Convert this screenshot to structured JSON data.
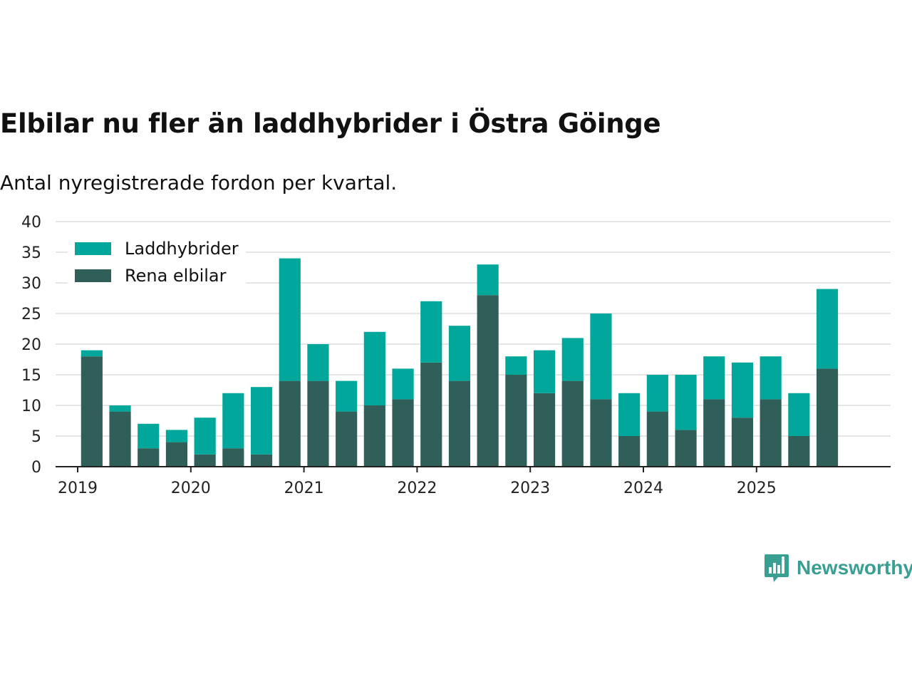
{
  "title": "Elbilar nu fler än laddhybrider i Östra Göinge",
  "subtitle": "Antal nyregistrerade fordon per kvartal.",
  "brand": {
    "name": "Newsworthy",
    "color": "#3a9f93",
    "icon": "newsworthy-logo-icon"
  },
  "colors": {
    "laddhybrider": "#00a79a",
    "rena_elbilar": "#2f5f58",
    "grid": "#dddddd",
    "axis": "#222222"
  },
  "chart_data": {
    "type": "bar",
    "stacked": true,
    "title": "Elbilar nu fler än laddhybrider i Östra Göinge",
    "subtitle": "Antal nyregistrerade fordon per kvartal.",
    "xlabel": "",
    "ylabel": "",
    "ylim": [
      0,
      40
    ],
    "yticks": [
      0,
      5,
      10,
      15,
      20,
      25,
      30,
      35,
      40
    ],
    "xlim": [
      2019,
      2026.2
    ],
    "xticks": [
      2019,
      2020,
      2021,
      2022,
      2023,
      2024,
      2025
    ],
    "x": [
      2019.25,
      2019.5,
      2019.75,
      2020.0,
      2020.25,
      2020.5,
      2020.75,
      2021.0,
      2021.25,
      2021.5,
      2021.75,
      2022.0,
      2022.25,
      2022.5,
      2022.75,
      2023.0,
      2023.25,
      2023.5,
      2023.75,
      2024.0,
      2024.25,
      2024.5,
      2024.75,
      2025.0,
      2025.25,
      2025.5,
      2025.75
    ],
    "bar_width": 0.19,
    "legend_position": "top-left",
    "grid": true,
    "series": [
      {
        "name": "Rena elbilar",
        "key": "rena_elbilar",
        "values": [
          18,
          9,
          3,
          4,
          2,
          3,
          2,
          14,
          14,
          9,
          10,
          11,
          17,
          14,
          28,
          15,
          12,
          14,
          11,
          5,
          9,
          6,
          11,
          8,
          11,
          5,
          16
        ]
      },
      {
        "name": "Laddhybrider",
        "key": "laddhybrider",
        "values": [
          1,
          1,
          4,
          2,
          6,
          9,
          11,
          20,
          6,
          5,
          12,
          5,
          10,
          9,
          5,
          3,
          7,
          7,
          14,
          7,
          6,
          9,
          7,
          9,
          7,
          7,
          13
        ]
      }
    ],
    "legend": [
      "Laddhybrider",
      "Rena elbilar"
    ]
  }
}
